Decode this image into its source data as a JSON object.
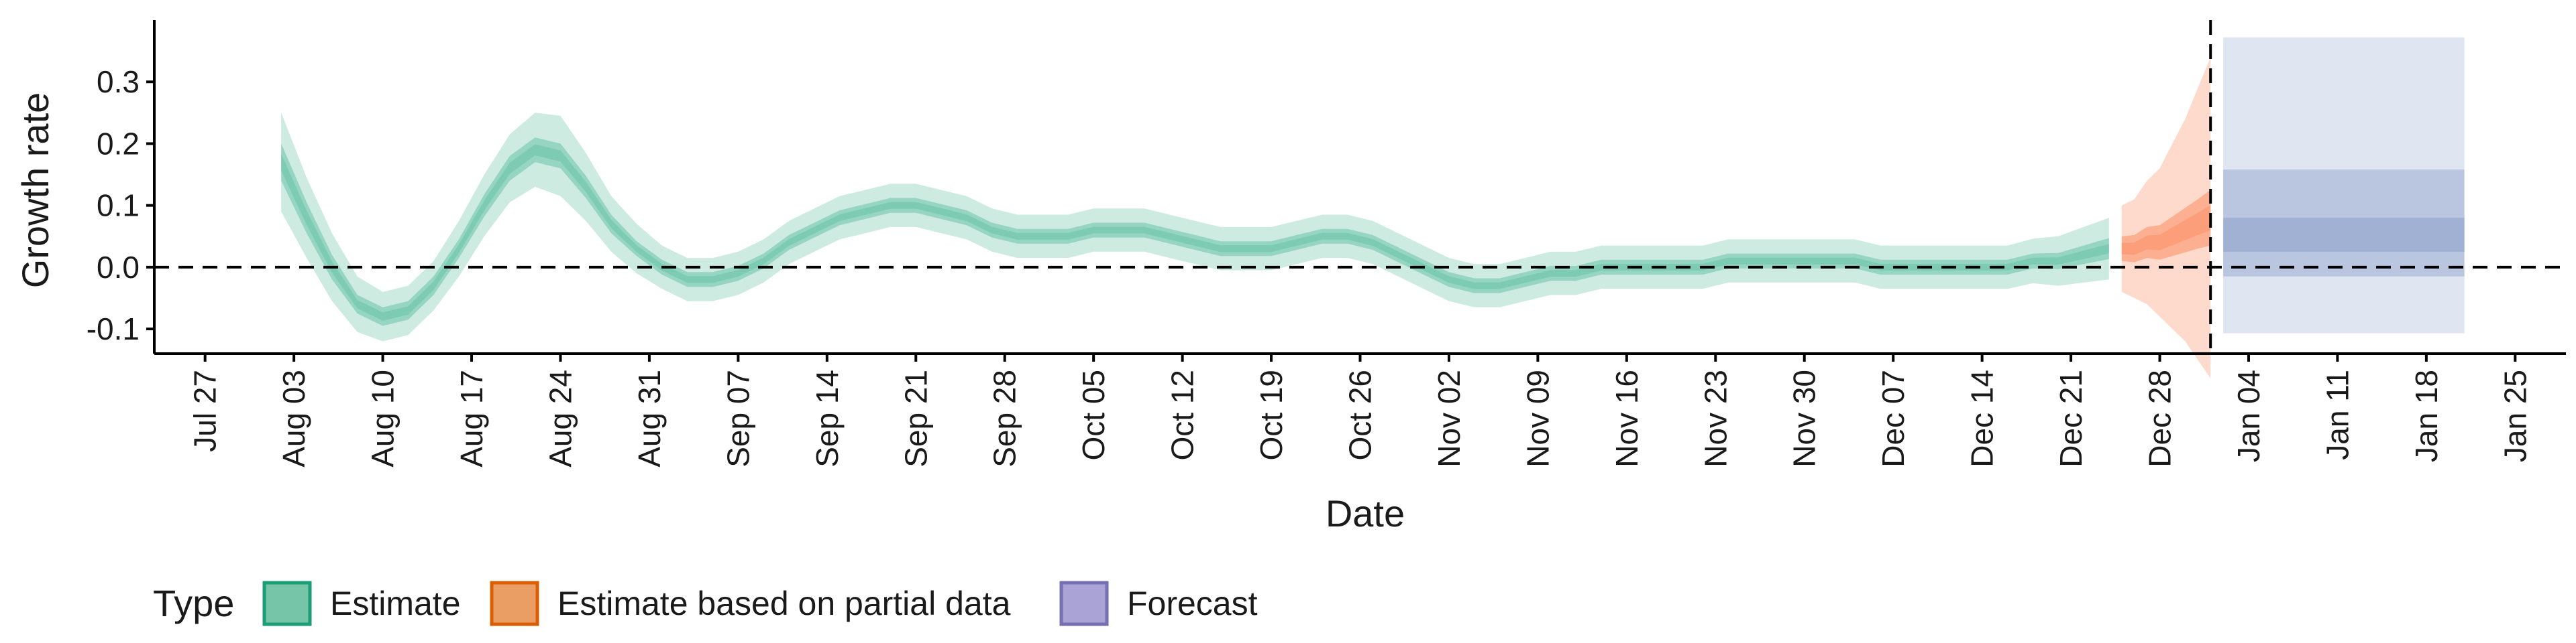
{
  "chart_data": {
    "type": "area",
    "title": "",
    "xlabel": "Date",
    "ylabel": "Growth rate",
    "ylim": [
      -0.14,
      0.4
    ],
    "xlim_day": [
      -4,
      148
    ],
    "grid": false,
    "reference_lines": {
      "hline_y": 0.0,
      "vline_day_label": "Jan 01"
    },
    "y_ticks": [
      {
        "value": -0.1,
        "label": "-0.1"
      },
      {
        "value": 0.0,
        "label": "0.0"
      },
      {
        "value": 0.1,
        "label": "0.1"
      },
      {
        "value": 0.2,
        "label": "0.2"
      },
      {
        "value": 0.3,
        "label": "0.3"
      }
    ],
    "x_ticks": [
      {
        "day": 0,
        "label": "Jul 27"
      },
      {
        "day": 7,
        "label": "Aug 03"
      },
      {
        "day": 14,
        "label": "Aug 10"
      },
      {
        "day": 21,
        "label": "Aug 17"
      },
      {
        "day": 28,
        "label": "Aug 24"
      },
      {
        "day": 35,
        "label": "Aug 31"
      },
      {
        "day": 42,
        "label": "Sep 07"
      },
      {
        "day": 49,
        "label": "Sep 14"
      },
      {
        "day": 56,
        "label": "Sep 21"
      },
      {
        "day": 63,
        "label": "Sep 28"
      },
      {
        "day": 70,
        "label": "Oct 05"
      },
      {
        "day": 77,
        "label": "Oct 12"
      },
      {
        "day": 84,
        "label": "Oct 19"
      },
      {
        "day": 91,
        "label": "Oct 26"
      },
      {
        "day": 98,
        "label": "Nov 02"
      },
      {
        "day": 105,
        "label": "Nov 09"
      },
      {
        "day": 112,
        "label": "Nov 16"
      },
      {
        "day": 119,
        "label": "Nov 23"
      },
      {
        "day": 126,
        "label": "Nov 30"
      },
      {
        "day": 133,
        "label": "Dec 07"
      },
      {
        "day": 140,
        "label": "Dec 14"
      },
      {
        "day": 147,
        "label": "Dec 21"
      },
      {
        "day": 154,
        "label": "Dec 28"
      },
      {
        "day": 161,
        "label": "Jan 04"
      },
      {
        "day": 168,
        "label": "Jan 11"
      },
      {
        "day": 175,
        "label": "Jan 18"
      },
      {
        "day": 182,
        "label": "Jan 25"
      }
    ],
    "x_range_days": [
      -4,
      186
    ],
    "vline_day": 158,
    "series": [
      {
        "name": "Estimate",
        "color": "#66c2a5",
        "x": [
          6,
          8,
          10,
          12,
          14,
          16,
          18,
          20,
          22,
          24,
          26,
          28,
          30,
          32,
          34,
          36,
          38,
          40,
          42,
          44,
          46,
          48,
          50,
          52,
          54,
          56,
          58,
          60,
          62,
          64,
          66,
          68,
          70,
          72,
          74,
          76,
          78,
          80,
          82,
          84,
          86,
          88,
          90,
          92,
          94,
          96,
          98,
          100,
          102,
          104,
          106,
          108,
          110,
          112,
          114,
          116,
          118,
          120,
          122,
          124,
          126,
          128,
          130,
          132,
          134,
          136,
          138,
          140,
          142,
          144,
          146,
          148,
          150
        ],
        "median": [
          0.17,
          0.08,
          0.0,
          -0.06,
          -0.08,
          -0.07,
          -0.03,
          0.03,
          0.1,
          0.16,
          0.19,
          0.18,
          0.13,
          0.07,
          0.03,
          0.0,
          -0.02,
          -0.02,
          -0.01,
          0.01,
          0.04,
          0.06,
          0.08,
          0.09,
          0.1,
          0.1,
          0.09,
          0.08,
          0.06,
          0.05,
          0.05,
          0.05,
          0.06,
          0.06,
          0.06,
          0.05,
          0.04,
          0.03,
          0.03,
          0.03,
          0.04,
          0.05,
          0.05,
          0.04,
          0.02,
          0.0,
          -0.02,
          -0.03,
          -0.03,
          -0.02,
          -0.01,
          -0.01,
          0.0,
          0.0,
          0.0,
          0.0,
          0.0,
          0.01,
          0.01,
          0.01,
          0.01,
          0.01,
          0.01,
          0.0,
          0.0,
          0.0,
          0.0,
          0.0,
          0.0,
          0.01,
          0.01,
          0.02,
          0.03
        ],
        "inner_halfwidth": [
          0.03,
          0.025,
          0.02,
          0.015,
          0.015,
          0.015,
          0.015,
          0.015,
          0.018,
          0.02,
          0.02,
          0.02,
          0.018,
          0.015,
          0.012,
          0.012,
          0.012,
          0.012,
          0.012,
          0.012,
          0.012,
          0.012,
          0.012,
          0.012,
          0.012,
          0.012,
          0.012,
          0.012,
          0.012,
          0.012,
          0.012,
          0.012,
          0.012,
          0.012,
          0.012,
          0.012,
          0.012,
          0.012,
          0.012,
          0.012,
          0.012,
          0.012,
          0.012,
          0.012,
          0.012,
          0.012,
          0.012,
          0.012,
          0.012,
          0.012,
          0.012,
          0.012,
          0.012,
          0.012,
          0.012,
          0.012,
          0.012,
          0.012,
          0.012,
          0.012,
          0.012,
          0.012,
          0.012,
          0.012,
          0.012,
          0.012,
          0.012,
          0.012,
          0.012,
          0.012,
          0.013,
          0.015,
          0.017
        ],
        "outer_halfwidth": [
          0.08,
          0.065,
          0.055,
          0.045,
          0.04,
          0.04,
          0.04,
          0.045,
          0.05,
          0.055,
          0.06,
          0.065,
          0.055,
          0.045,
          0.04,
          0.035,
          0.035,
          0.035,
          0.035,
          0.035,
          0.035,
          0.035,
          0.035,
          0.035,
          0.035,
          0.035,
          0.035,
          0.035,
          0.035,
          0.035,
          0.035,
          0.035,
          0.035,
          0.035,
          0.035,
          0.035,
          0.035,
          0.035,
          0.035,
          0.035,
          0.035,
          0.035,
          0.035,
          0.035,
          0.035,
          0.035,
          0.035,
          0.035,
          0.035,
          0.035,
          0.035,
          0.035,
          0.035,
          0.035,
          0.035,
          0.035,
          0.035,
          0.035,
          0.035,
          0.035,
          0.035,
          0.035,
          0.035,
          0.035,
          0.035,
          0.035,
          0.035,
          0.035,
          0.035,
          0.036,
          0.04,
          0.045,
          0.05
        ]
      },
      {
        "name": "Estimate based on partial data",
        "color": "#fc8d62",
        "x": [
          151,
          152,
          153,
          154,
          155,
          156,
          157,
          158
        ],
        "median": [
          0.03,
          0.03,
          0.04,
          0.04,
          0.05,
          0.06,
          0.07,
          0.08
        ],
        "inner_halfwidth": [
          0.02,
          0.022,
          0.025,
          0.028,
          0.032,
          0.036,
          0.04,
          0.045
        ],
        "outer_halfwidth": [
          0.07,
          0.08,
          0.1,
          0.12,
          0.15,
          0.18,
          0.22,
          0.26
        ]
      },
      {
        "name": "Forecast",
        "color": "#8da0cb",
        "x": [
          159,
          178
        ],
        "median": [
          0.05,
          0.05
        ],
        "band_inner": [
          0.025,
          0.08
        ],
        "band_mid": [
          -0.015,
          0.158
        ],
        "band_outer": [
          -0.107,
          0.372
        ]
      }
    ],
    "legend": {
      "title": "Type",
      "position": "bottom-left",
      "entries": [
        {
          "label": "Estimate",
          "fill": "#76c5a8",
          "stroke": "#1b9e77"
        },
        {
          "label": "Estimate based on partial data",
          "fill": "#ea9e64",
          "stroke": "#d95f02"
        },
        {
          "label": "Forecast",
          "fill": "#aaa4d6",
          "stroke": "#7570b3"
        }
      ]
    }
  }
}
